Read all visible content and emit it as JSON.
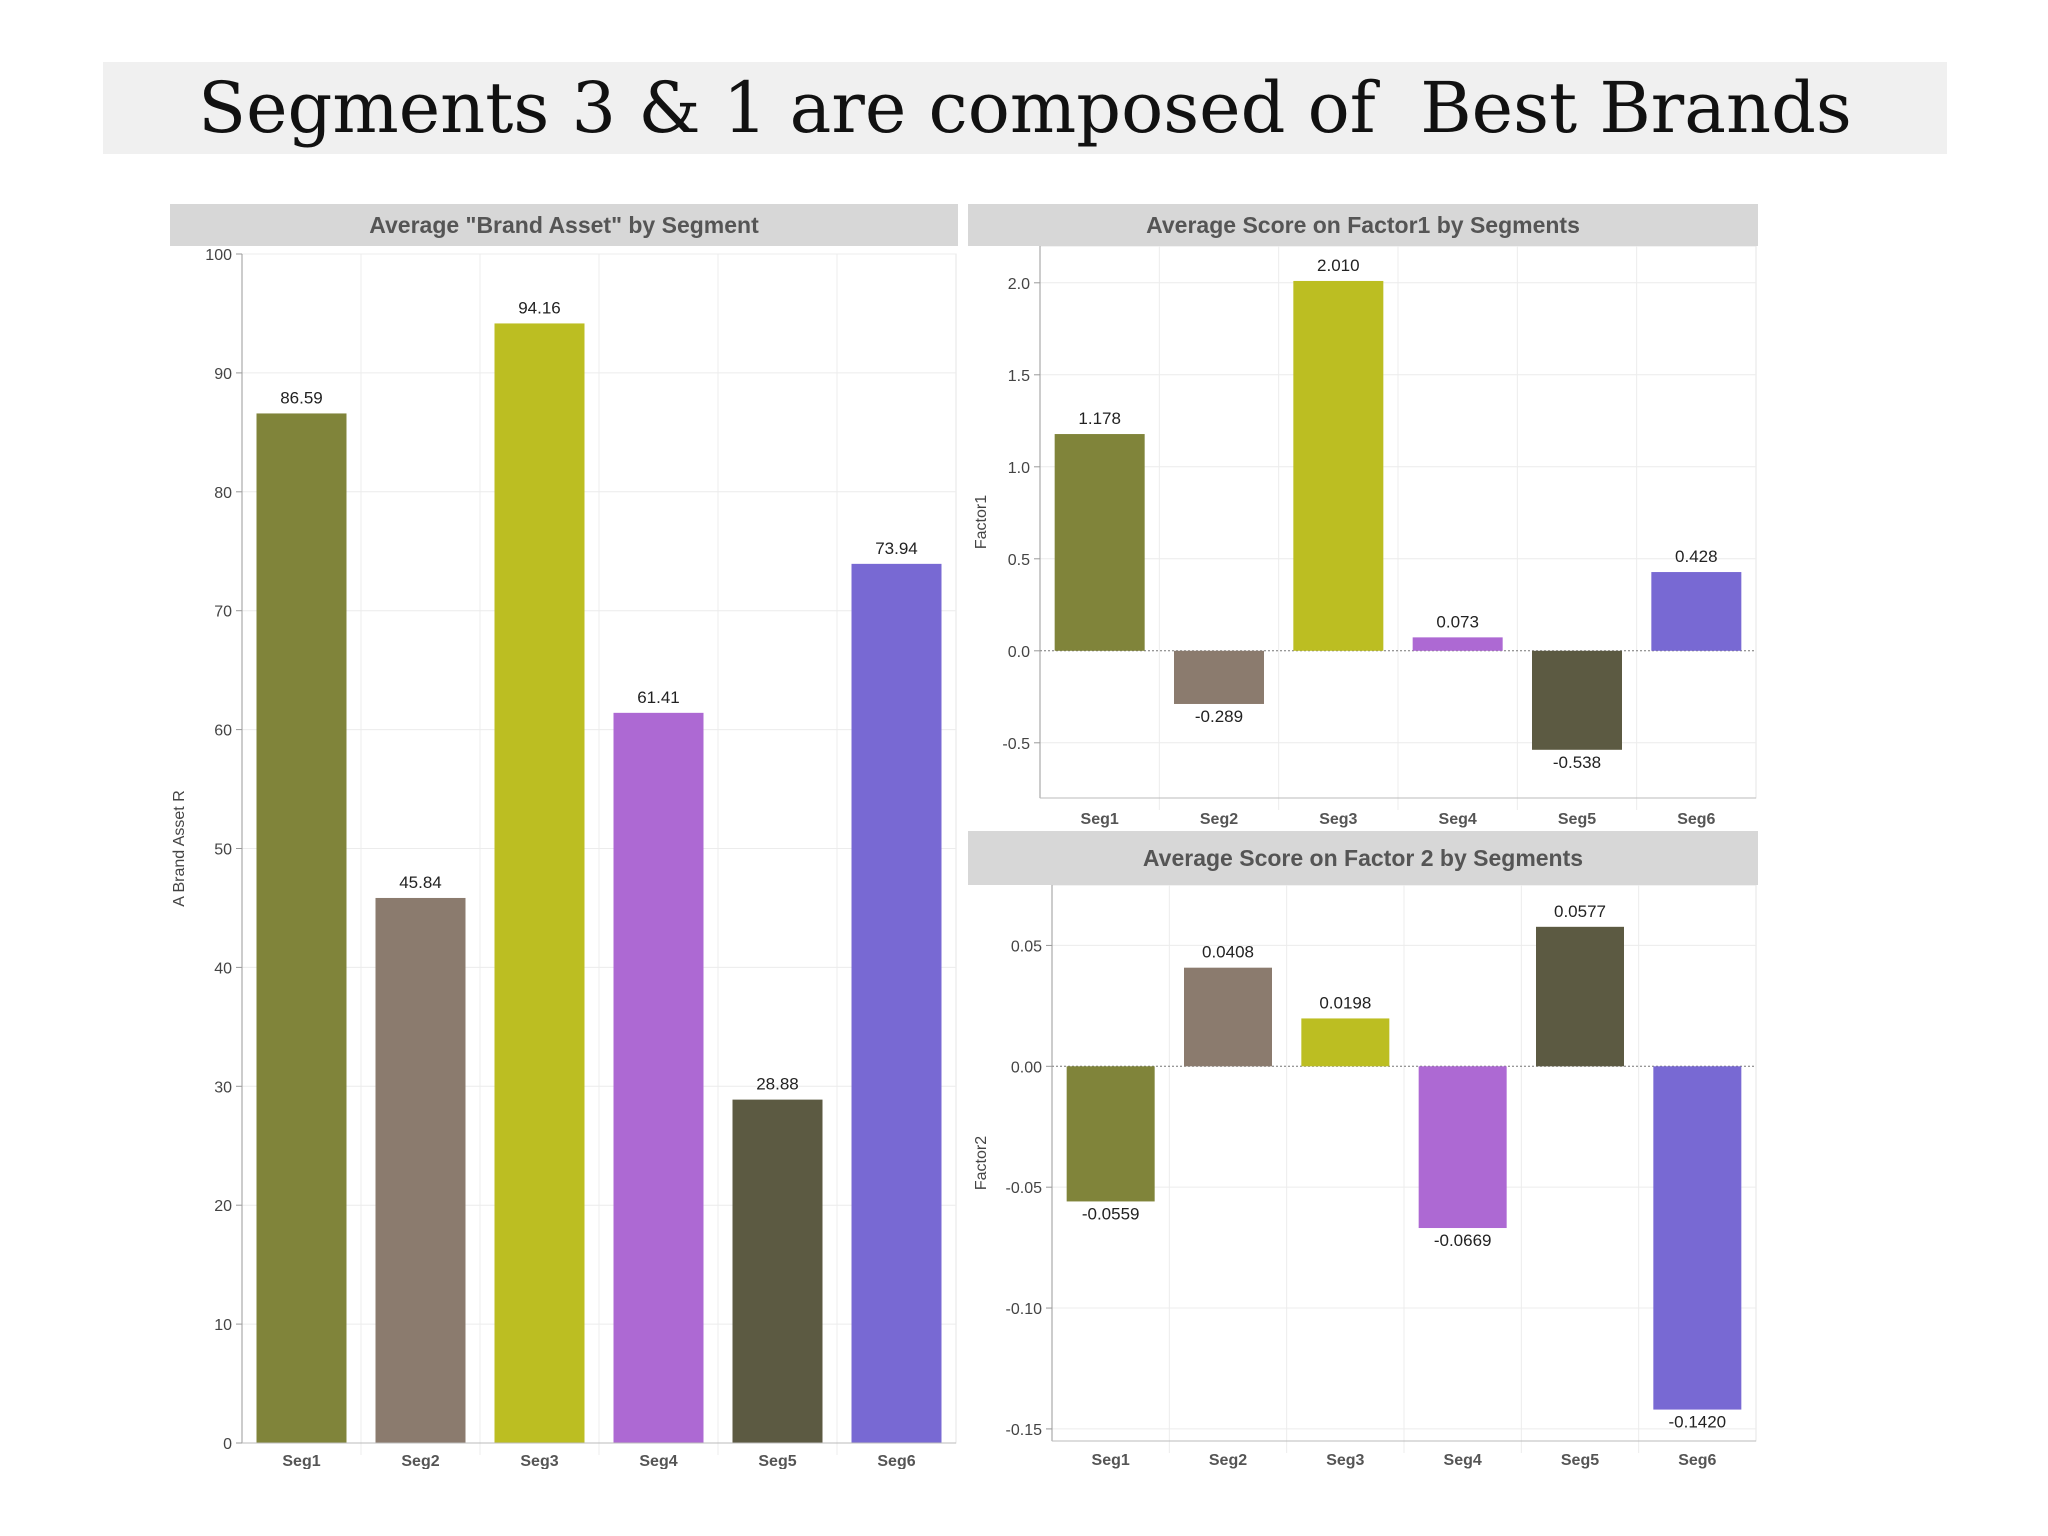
{
  "slide": {
    "title": "Segments 3 & 1 are composed of  Best Brands"
  },
  "colors": {
    "Seg1": "#80843a",
    "Seg2": "#8b7b6e",
    "Seg3": "#bcbe22",
    "Seg4": "#ad69d3",
    "Seg5": "#5c5a42",
    "Seg6": "#7869d3",
    "header_bg": "#d7d7d7",
    "header_text": "#555555",
    "gridline": "#ececec"
  },
  "chart_data": [
    {
      "id": "brand-asset",
      "type": "bar",
      "title": "Average \"Brand Asset\" by Segment",
      "xlabel": "",
      "ylabel": "A Brand Asset R",
      "categories": [
        "Seg1",
        "Seg2",
        "Seg3",
        "Seg4",
        "Seg5",
        "Seg6"
      ],
      "values": [
        86.59,
        45.84,
        94.16,
        61.41,
        28.88,
        73.94
      ],
      "data_labels": [
        "86.59",
        "45.84",
        "94.16",
        "61.41",
        "28.88",
        "73.94"
      ],
      "ylim": [
        0,
        100
      ],
      "yticks": [
        0,
        10,
        20,
        30,
        40,
        50,
        60,
        70,
        80,
        90,
        100
      ],
      "ytick_labels": [
        "0",
        "10",
        "20",
        "30",
        "40",
        "50",
        "60",
        "70",
        "80",
        "90",
        "100"
      ],
      "grid": true,
      "legend": "none"
    },
    {
      "id": "factor1",
      "type": "bar",
      "title": "Average Score on Factor1 by Segments",
      "xlabel": "",
      "ylabel": "Factor1",
      "categories": [
        "Seg1",
        "Seg2",
        "Seg3",
        "Seg4",
        "Seg5",
        "Seg6"
      ],
      "values": [
        1.178,
        -0.289,
        2.01,
        0.073,
        -0.538,
        0.428
      ],
      "data_labels": [
        "1.178",
        "-0.289",
        "2.010",
        "0.073",
        "-0.538",
        "0.428"
      ],
      "ylim": [
        -0.8,
        2.2
      ],
      "yticks": [
        -0.5,
        0.0,
        0.5,
        1.0,
        1.5,
        2.0
      ],
      "ytick_labels": [
        "-0.5",
        "0.0",
        "0.5",
        "1.0",
        "1.5",
        "2.0"
      ],
      "grid": true,
      "legend": "none"
    },
    {
      "id": "factor2",
      "type": "bar",
      "title": "Average Score on Factor 2 by Segments",
      "xlabel": "",
      "ylabel": "Factor2",
      "categories": [
        "Seg1",
        "Seg2",
        "Seg3",
        "Seg4",
        "Seg5",
        "Seg6"
      ],
      "values": [
        -0.0559,
        0.0408,
        0.0198,
        -0.0669,
        0.0577,
        -0.142
      ],
      "data_labels": [
        "-0.0559",
        "0.0408",
        "0.0198",
        "-0.0669",
        "0.0577",
        "-0.1420"
      ],
      "ylim": [
        -0.155,
        0.075
      ],
      "yticks": [
        -0.15,
        -0.1,
        -0.05,
        0.0,
        0.05
      ],
      "ytick_labels": [
        "-0.15",
        "-0.10",
        "-0.05",
        "0.00",
        "0.05"
      ],
      "grid": true,
      "legend": "none"
    }
  ]
}
